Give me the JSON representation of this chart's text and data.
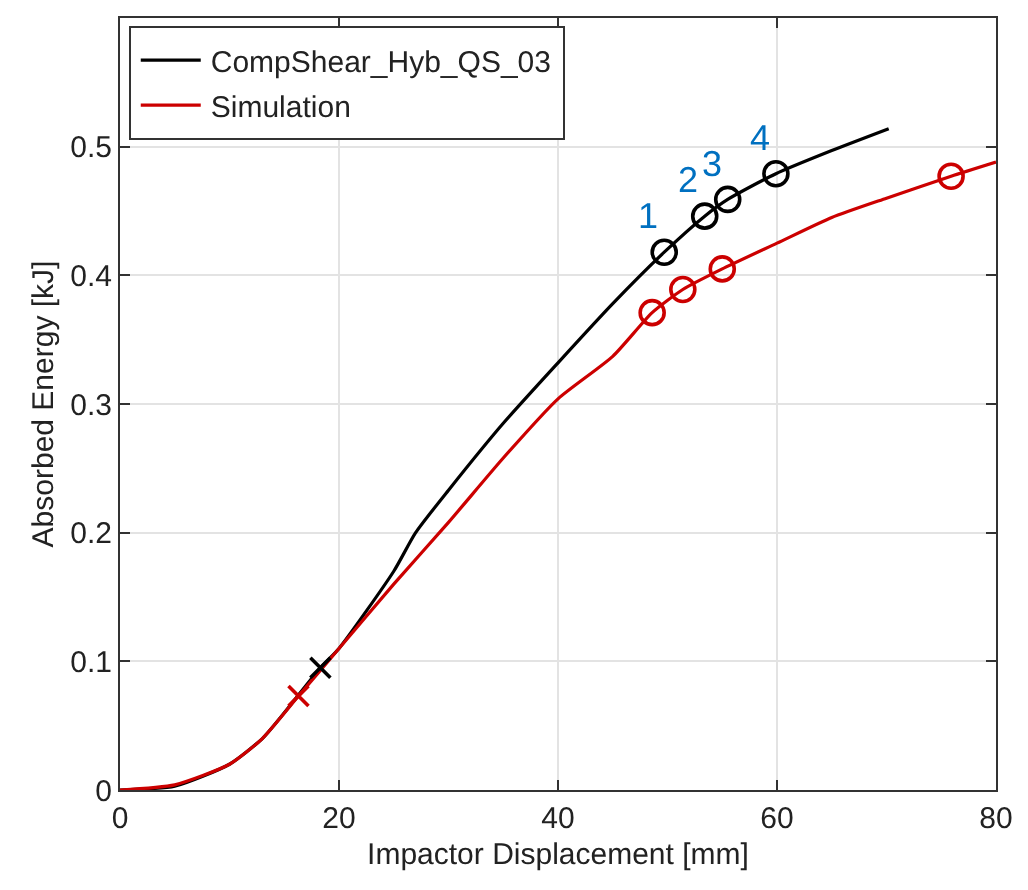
{
  "chart_data": {
    "type": "line",
    "xlabel": "Impactor Displacement [mm]",
    "ylabel": "Absorbed Energy [kJ]",
    "xlim": [
      0,
      80
    ],
    "xticks": [
      0,
      20,
      40,
      60,
      80
    ],
    "ylim": [
      0,
      0.6
    ],
    "yticks": [
      0,
      0.1,
      0.2,
      0.3,
      0.4,
      0.5
    ],
    "grid": true,
    "legend": "top left",
    "series": [
      {
        "name": "CompShear_Hyb_QS_03",
        "color": "#000000",
        "x": [
          0,
          5,
          10,
          13,
          15,
          18.3,
          20,
          25,
          27,
          30,
          35,
          40,
          45,
          49.7,
          53.4,
          55.5,
          59.9,
          65,
          70.2
        ],
        "values": [
          0,
          0.003,
          0.02,
          0.04,
          0.06,
          0.095,
          0.11,
          0.17,
          0.2,
          0.233,
          0.285,
          0.332,
          0.378,
          0.418,
          0.446,
          0.459,
          0.479,
          0.497,
          0.514
        ]
      },
      {
        "name": "Simulation",
        "color": "#cc0000",
        "x": [
          0,
          5,
          10,
          13,
          16.3,
          20,
          25,
          30,
          35,
          40,
          45,
          48.6,
          51.4,
          55,
          60,
          65,
          70,
          75.9,
          80
        ],
        "values": [
          0,
          0.004,
          0.02,
          0.04,
          0.073,
          0.11,
          0.16,
          0.208,
          0.258,
          0.304,
          0.337,
          0.371,
          0.389,
          0.405,
          0.425,
          0.445,
          0.46,
          0.477,
          0.488
        ]
      },
      {
        "type": "scatter",
        "marker": "circle",
        "color": "#000000",
        "x": [
          49.7,
          53.4,
          55.5,
          59.9
        ],
        "values": [
          0.418,
          0.446,
          0.459,
          0.479
        ]
      },
      {
        "type": "scatter",
        "marker": "circle",
        "color": "#cc0000",
        "x": [
          48.6,
          51.4,
          55,
          75.9
        ],
        "values": [
          0.371,
          0.389,
          0.405,
          0.477
        ]
      },
      {
        "type": "scatter",
        "marker": "cross",
        "color": "#000000",
        "x": [
          18.3
        ],
        "values": [
          0.095
        ]
      },
      {
        "type": "scatter",
        "marker": "cross",
        "color": "#cc0000",
        "x": [
          16.3
        ],
        "values": [
          0.073
        ]
      }
    ],
    "annotations": [
      {
        "text": "1",
        "x": 49.7,
        "y": 0.418
      },
      {
        "text": "2",
        "x": 53.4,
        "y": 0.446
      },
      {
        "text": "3",
        "x": 55.5,
        "y": 0.459
      },
      {
        "text": "4",
        "x": 59.9,
        "y": 0.479
      }
    ]
  }
}
